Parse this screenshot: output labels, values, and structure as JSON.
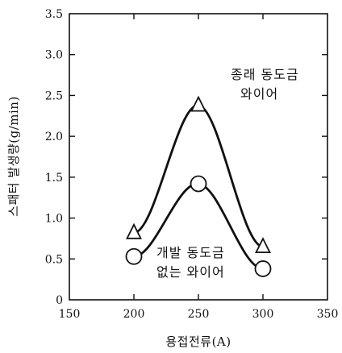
{
  "chart_data": {
    "type": "line",
    "xlabel": "용접전류(A)",
    "ylabel": "스패터 발생량(g/min)",
    "xlim": [
      150,
      350
    ],
    "ylim": [
      0,
      3.5
    ],
    "xticks": [
      "150",
      "200",
      "250",
      "300",
      "350"
    ],
    "yticks": [
      "0",
      "0.5",
      "1.0",
      "1.5",
      "2.0",
      "2.5",
      "3.0",
      "3.5"
    ],
    "grid": false,
    "series": [
      {
        "name_lines": [
          "종래 동도금",
          "와이어"
        ],
        "marker": "triangle",
        "x": [
          200,
          250,
          300
        ],
        "y": [
          0.82,
          2.38,
          0.65
        ]
      },
      {
        "name_lines": [
          "개발 동도금",
          "없는 와이어"
        ],
        "marker": "circle",
        "x": [
          200,
          250,
          300
        ],
        "y": [
          0.53,
          1.42,
          0.38
        ]
      }
    ]
  }
}
